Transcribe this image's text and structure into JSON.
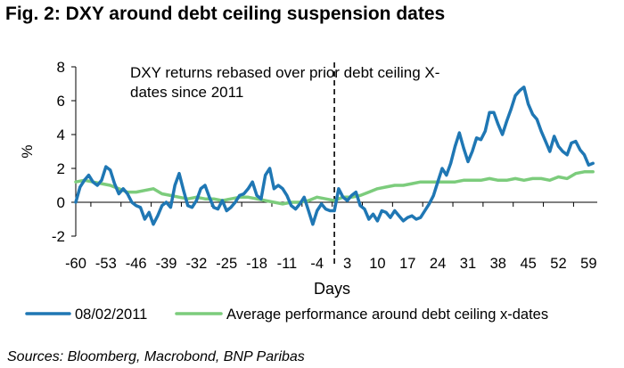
{
  "figure": {
    "title": "Fig. 2: DXY around debt ceiling suspension dates",
    "source": "Sources: Bloomberg, Macrobond, BNP Paribas"
  },
  "chart_data": {
    "type": "line",
    "title": "Fig. 2: DXY around debt ceiling suspension dates",
    "xlabel": "Days",
    "ylabel": "%",
    "xlim": [
      -60,
      61
    ],
    "ylim": [
      -2,
      8
    ],
    "xticks": [
      -60,
      -53,
      -46,
      -39,
      -32,
      -25,
      -18,
      -11,
      -4,
      3,
      10,
      17,
      24,
      31,
      38,
      45,
      52,
      59
    ],
    "yticks": [
      -2,
      0,
      2,
      4,
      6,
      8
    ],
    "grid": false,
    "legend_position": "bottom",
    "vline_x": 0,
    "annotation": "DXY returns rebased over prior debt ceiling X-dates since 2011",
    "annotation_lines": [
      "DXY returns rebased over prior debt ceiling X-",
      "dates since 2011"
    ],
    "series": [
      {
        "name": "08/02/2011",
        "color": "#1f77b4",
        "x": [
          -60,
          -59,
          -58,
          -57,
          -56,
          -55,
          -54,
          -53,
          -52,
          -51,
          -50,
          -49,
          -48,
          -47,
          -46,
          -45,
          -44,
          -43,
          -42,
          -41,
          -40,
          -39,
          -38,
          -37,
          -36,
          -35,
          -34,
          -33,
          -32,
          -31,
          -30,
          -29,
          -28,
          -27,
          -26,
          -25,
          -24,
          -23,
          -22,
          -21,
          -20,
          -19,
          -18,
          -17,
          -16,
          -15,
          -14,
          -13,
          -12,
          -11,
          -10,
          -9,
          -8,
          -7,
          -6,
          -5,
          -4,
          -3,
          -2,
          -1,
          0,
          1,
          2,
          3,
          4,
          5,
          6,
          7,
          8,
          9,
          10,
          11,
          12,
          13,
          14,
          15,
          16,
          17,
          18,
          19,
          20,
          21,
          22,
          23,
          24,
          25,
          26,
          27,
          28,
          29,
          30,
          31,
          32,
          33,
          34,
          35,
          36,
          37,
          38,
          39,
          40,
          41,
          42,
          43,
          44,
          45,
          46,
          47,
          48,
          49,
          50,
          51,
          52,
          53,
          54,
          55,
          56,
          57,
          58,
          59,
          60
        ],
        "y": [
          0.0,
          0.9,
          1.3,
          1.6,
          1.2,
          1.0,
          1.3,
          2.1,
          1.9,
          1.1,
          0.5,
          0.8,
          0.5,
          0.0,
          -0.2,
          -0.3,
          -1.0,
          -0.6,
          -1.3,
          -0.8,
          -0.2,
          0.0,
          -0.3,
          1.0,
          1.7,
          0.7,
          -0.2,
          -0.3,
          0.1,
          0.8,
          1.0,
          0.3,
          -0.3,
          -0.4,
          0.1,
          -0.5,
          -0.3,
          0.0,
          0.4,
          0.5,
          0.8,
          1.2,
          0.4,
          0.2,
          1.6,
          2.0,
          0.8,
          1.0,
          0.8,
          0.4,
          -0.2,
          -0.4,
          -0.1,
          0.3,
          -0.5,
          -1.3,
          -0.5,
          -0.1,
          -0.4,
          -0.5,
          -0.5,
          0.8,
          0.3,
          0.1,
          0.4,
          0.6,
          -0.2,
          -0.4,
          -1.0,
          -0.7,
          -1.1,
          -0.5,
          -0.6,
          -0.9,
          -0.5,
          -0.8,
          -1.1,
          -0.9,
          -0.8,
          -1.0,
          -0.9,
          -0.5,
          -0.1,
          0.4,
          1.2,
          2.0,
          1.6,
          2.3,
          3.3,
          4.1,
          3.2,
          2.4,
          3.0,
          3.8,
          3.7,
          4.2,
          5.3,
          5.3,
          4.6,
          4.0,
          4.8,
          5.5,
          6.3,
          6.6,
          6.8,
          5.8,
          5.2,
          4.9,
          4.2,
          3.6,
          3.0,
          3.9,
          3.3,
          3.0,
          2.8,
          3.5,
          3.6,
          3.1,
          2.8,
          2.2,
          2.3
        ],
        "width": 3.5
      },
      {
        "name": "Average performance around debt ceiling x-dates",
        "color": "#7ccc7c",
        "x": [
          -60,
          -58,
          -56,
          -54,
          -52,
          -50,
          -48,
          -46,
          -44,
          -42,
          -40,
          -38,
          -36,
          -34,
          -32,
          -30,
          -28,
          -26,
          -24,
          -22,
          -20,
          -18,
          -16,
          -14,
          -12,
          -10,
          -8,
          -6,
          -4,
          -2,
          0,
          2,
          4,
          6,
          8,
          10,
          12,
          14,
          16,
          18,
          20,
          22,
          24,
          26,
          28,
          30,
          32,
          34,
          36,
          38,
          40,
          42,
          44,
          46,
          48,
          50,
          52,
          54,
          56,
          58,
          60
        ],
        "y": [
          1.2,
          1.3,
          1.2,
          1.1,
          1.0,
          0.8,
          0.6,
          0.6,
          0.7,
          0.8,
          0.5,
          0.4,
          0.3,
          0.2,
          0.3,
          0.2,
          0.2,
          0.1,
          0.2,
          0.3,
          0.3,
          0.2,
          0.1,
          0.0,
          -0.1,
          0.0,
          0.0,
          0.1,
          0.3,
          0.2,
          0.1,
          0.3,
          0.3,
          0.4,
          0.6,
          0.8,
          0.9,
          1.0,
          1.0,
          1.1,
          1.2,
          1.2,
          1.2,
          1.2,
          1.2,
          1.3,
          1.3,
          1.3,
          1.4,
          1.3,
          1.3,
          1.4,
          1.3,
          1.4,
          1.4,
          1.3,
          1.5,
          1.4,
          1.7,
          1.8,
          1.8
        ],
        "width": 3.5
      }
    ]
  }
}
